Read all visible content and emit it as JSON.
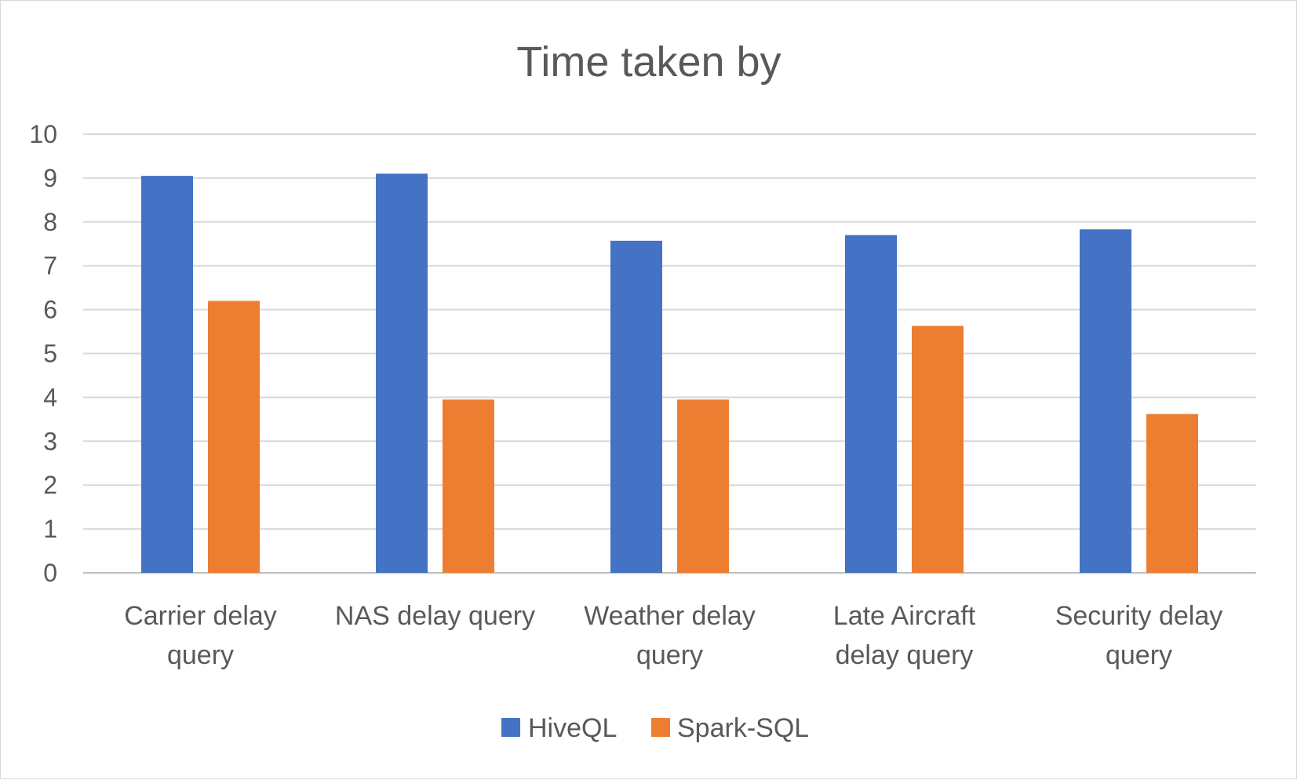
{
  "chart_data": {
    "type": "bar",
    "title": "Time taken by",
    "xlabel": "",
    "ylabel": "",
    "ylim": [
      0,
      10
    ],
    "yticks": [
      "0",
      "1",
      "2",
      "3",
      "4",
      "5",
      "6",
      "7",
      "8",
      "9",
      "10"
    ],
    "grid": true,
    "legend_position": "bottom",
    "categories": [
      [
        "Carrier delay",
        "query"
      ],
      [
        "NAS delay query"
      ],
      [
        "Weather delay",
        "query"
      ],
      [
        "Late Aircraft",
        "delay query"
      ],
      [
        "Security delay",
        "query"
      ]
    ],
    "series": [
      {
        "name": "HiveQL",
        "color": "#4472C4",
        "values": [
          9.05,
          9.1,
          7.57,
          7.7,
          7.83
        ]
      },
      {
        "name": "Spark-SQL",
        "color": "#ED7D31",
        "values": [
          6.2,
          3.95,
          3.95,
          5.63,
          3.62
        ]
      }
    ]
  }
}
